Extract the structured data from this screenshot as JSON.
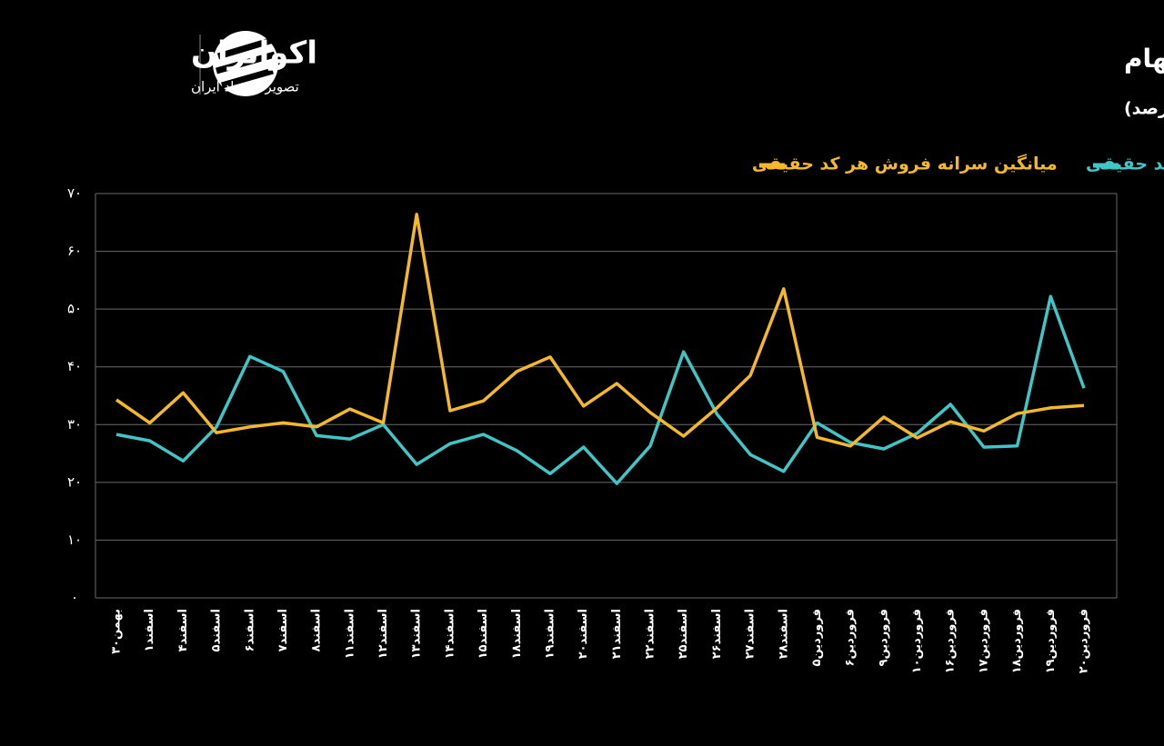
{
  "brand": {
    "name": "اکوایران",
    "tagline": "تصویر اقتصاد ایران"
  },
  "chart_data": {
    "type": "line",
    "title": "روند ارزش سرانه خرید و فروش هر کد حقیقی در سهام",
    "subtitle": "(واحد: درصد)",
    "categories": [
      "بهمن۳۰",
      "اسفند۱",
      "اسفند۴",
      "اسفند۵",
      "اسفند۶",
      "اسفند۷",
      "اسفند۸",
      "اسفند۱۱",
      "اسفند۱۲",
      "اسفند۱۳",
      "اسفند۱۴",
      "اسفند۱۵",
      "اسفند۱۸",
      "اسفند۱۹",
      "اسفند۲۰",
      "اسفند۲۱",
      "اسفند۲۲",
      "اسفند۲۵",
      "اسفند۲۶",
      "اسفند۲۷",
      "اسفند۲۸",
      "فروردین۵",
      "فروردین۶",
      "فروردین۹",
      "فروردین۱۰",
      "فروردین۱۶",
      "فروردین۱۷",
      "فروردین۱۸",
      "فروردین۱۹",
      "فروردین۲۰"
    ],
    "series": [
      {
        "name": "میانگین سرانه خرید هر کد حقیقی",
        "color": "#3fc6c6",
        "values": [
          28.3,
          27.2,
          23.7,
          29.6,
          41.8,
          39.2,
          28.1,
          27.5,
          30.0,
          23.1,
          26.7,
          28.3,
          25.5,
          21.5,
          26.1,
          19.8,
          26.3,
          42.6,
          31.8,
          24.8,
          21.9,
          30.3,
          26.9,
          25.8,
          28.5,
          33.5,
          26.1,
          26.3,
          52.2,
          36.3
        ]
      },
      {
        "name": "میانگین سرانه فروش هر کد حقیقی",
        "color": "#f5b928",
        "values": [
          34.3,
          30.3,
          35.5,
          28.6,
          29.6,
          30.3,
          29.6,
          32.7,
          30.3,
          66.4,
          32.4,
          34.1,
          39.2,
          41.7,
          33.2,
          37.1,
          32.1,
          28.0,
          32.9,
          38.5,
          53.5,
          27.8,
          26.3,
          31.3,
          27.7,
          30.5,
          28.9,
          31.9,
          32.9,
          33.3
        ]
      }
    ],
    "ylim": [
      0,
      70
    ],
    "yticks": [
      {
        "value": 0,
        "label": "۰"
      },
      {
        "value": 10,
        "label": "۱۰"
      },
      {
        "value": 20,
        "label": "۲۰"
      },
      {
        "value": 30,
        "label": "۳۰"
      },
      {
        "value": 40,
        "label": "۴۰"
      },
      {
        "value": 50,
        "label": "۵۰"
      },
      {
        "value": 60,
        "label": "۶۰"
      },
      {
        "value": 70,
        "label": "۷۰"
      }
    ],
    "grid": true
  }
}
